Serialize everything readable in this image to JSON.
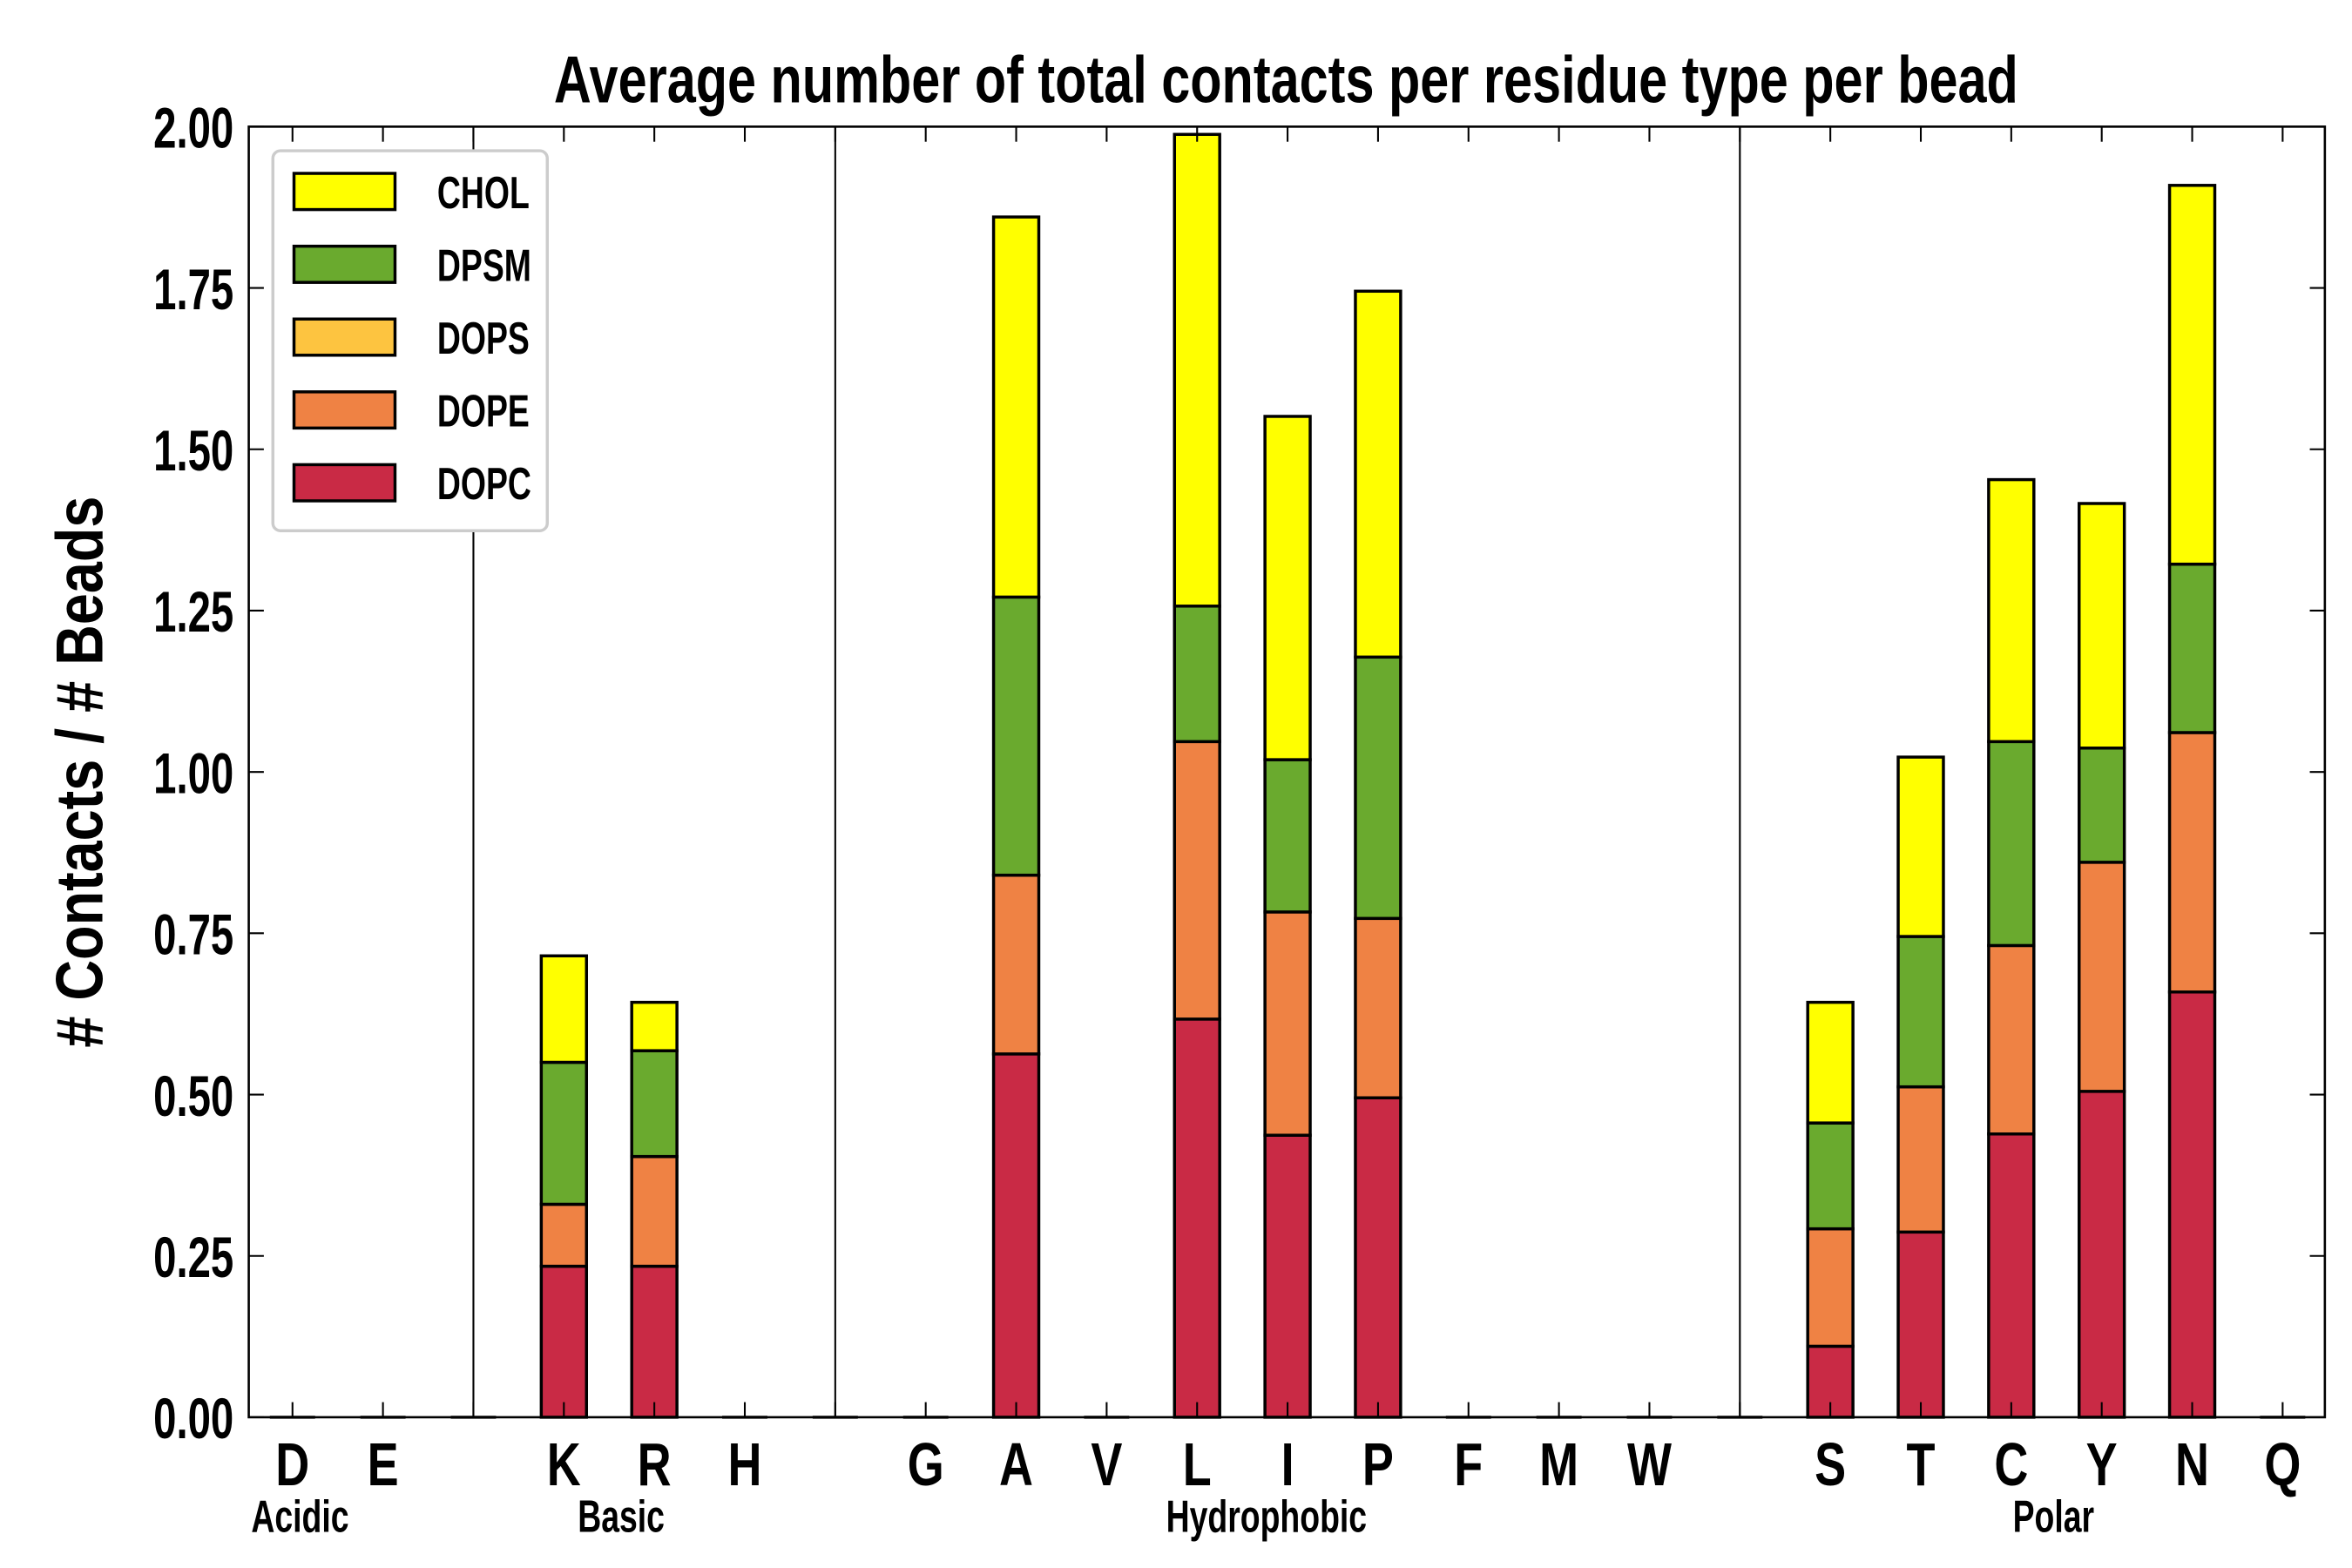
{
  "chart_data": {
    "type": "bar",
    "stacked": true,
    "title": "Average number of total contacts per residue type per bead",
    "xlabel": "",
    "ylabel": "# Contacts / # Beads",
    "ylim": [
      0,
      2.0
    ],
    "yticks": [
      "0.00",
      "0.25",
      "0.50",
      "0.75",
      "1.00",
      "1.25",
      "1.50",
      "1.75",
      "2.00"
    ],
    "grid": false,
    "legend_position": "top-left",
    "categories": [
      "D",
      "E",
      "",
      "K",
      "R",
      "H",
      "",
      "G",
      "A",
      "V",
      "L",
      "I",
      "P",
      "F",
      "M",
      "W",
      "",
      "S",
      "T",
      "C",
      "Y",
      "N",
      "Q"
    ],
    "groups": [
      {
        "label": "Acidic",
        "categories": [
          "D",
          "E"
        ]
      },
      {
        "label": "Basic",
        "categories": [
          "K",
          "R",
          "H"
        ]
      },
      {
        "label": "Hydrophobic",
        "categories": [
          "G",
          "A",
          "V",
          "L",
          "I",
          "P",
          "F",
          "M",
          "W"
        ]
      },
      {
        "label": "Polar",
        "categories": [
          "S",
          "T",
          "C",
          "Y",
          "N",
          "Q"
        ]
      }
    ],
    "series": [
      {
        "name": "DOPC",
        "color": "#c92a45",
        "values": [
          0,
          0,
          0,
          0.234,
          0.234,
          0,
          0,
          0,
          0.563,
          0,
          0.617,
          0.437,
          0.495,
          0,
          0,
          0,
          0,
          0.11,
          0.287,
          0.439,
          0.505,
          0.659,
          0
        ]
      },
      {
        "name": "DOPE",
        "color": "#ef8244",
        "values": [
          0,
          0,
          0,
          0.096,
          0.17,
          0,
          0,
          0,
          0.277,
          0,
          0.43,
          0.346,
          0.278,
          0,
          0,
          0,
          0,
          0.182,
          0.225,
          0.292,
          0.355,
          0.402,
          0
        ]
      },
      {
        "name": "DOPS",
        "color": "#fdc440",
        "values": [
          0,
          0,
          0,
          0,
          0,
          0,
          0,
          0,
          0,
          0,
          0,
          0,
          0,
          0,
          0,
          0,
          0,
          0,
          0,
          0,
          0,
          0,
          0
        ]
      },
      {
        "name": "DPSM",
        "color": "#6aaa2e",
        "values": [
          0,
          0,
          0,
          0.22,
          0.164,
          0,
          0,
          0,
          0.431,
          0,
          0.21,
          0.236,
          0.405,
          0,
          0,
          0,
          0,
          0.164,
          0.233,
          0.316,
          0.177,
          0.261,
          0
        ]
      },
      {
        "name": "CHOL",
        "color": "#ffff00",
        "values": [
          0,
          0,
          0,
          0.165,
          0.075,
          0,
          0,
          0,
          0.589,
          0,
          0.731,
          0.532,
          0.567,
          0,
          0,
          0,
          0,
          0.187,
          0.278,
          0.406,
          0.379,
          0.587,
          0
        ]
      }
    ],
    "legend_order": [
      "CHOL",
      "DPSM",
      "DOPS",
      "DOPE",
      "DOPC"
    ]
  }
}
